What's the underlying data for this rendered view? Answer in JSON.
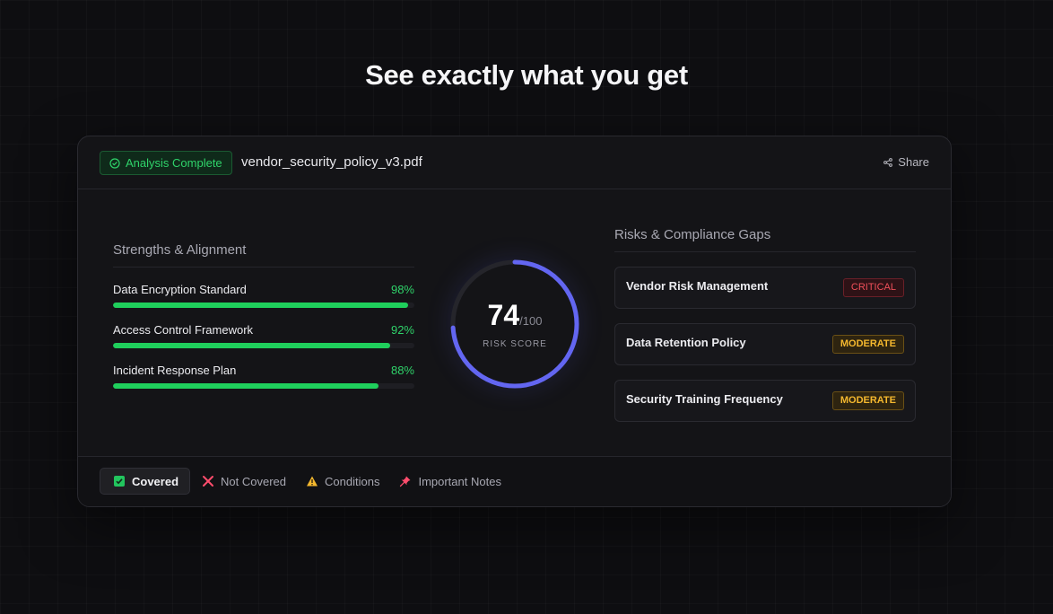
{
  "headline": "See exactly what you get",
  "header": {
    "status": "Analysis Complete",
    "filename": "vendor_security_policy_v3.pdf",
    "share_label": "Share"
  },
  "strengths": {
    "title": "Strengths & Alignment",
    "items": [
      {
        "label": "Data Encryption Standard",
        "value": "98%",
        "fraction": 0.98
      },
      {
        "label": "Access Control Framework",
        "value": "92%",
        "fraction": 0.92
      },
      {
        "label": "Incident Response Plan",
        "value": "88%",
        "fraction": 0.88
      }
    ]
  },
  "score": {
    "value": "74",
    "max": "/100",
    "label": "RISK SCORE",
    "fraction": 0.74,
    "ring_color": "#6366f1"
  },
  "risks": {
    "title": "Risks & Compliance Gaps",
    "items": [
      {
        "name": "Vendor Risk Management",
        "severity": "CRITICAL"
      },
      {
        "name": "Data Retention Policy",
        "severity": "MODERATE"
      },
      {
        "name": "Security Training Frequency",
        "severity": "MODERATE"
      }
    ]
  },
  "legend": {
    "items": [
      {
        "label": "Covered",
        "icon": "check-square-icon",
        "active": true
      },
      {
        "label": "Not Covered",
        "icon": "x-mark-icon"
      },
      {
        "label": "Conditions",
        "icon": "warning-icon"
      },
      {
        "label": "Important Notes",
        "icon": "pushpin-icon"
      }
    ]
  },
  "colors": {
    "success": "#22c55e",
    "critical": "#ef4444",
    "moderate": "#f5b82e",
    "accent": "#6366f1"
  }
}
